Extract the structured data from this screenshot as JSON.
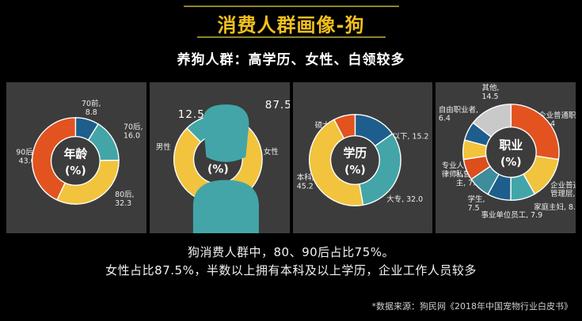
{
  "header": {
    "title": "消费人群画像-狗",
    "subtitle": "养狗人群：高学历、女性、白领较多"
  },
  "summary": {
    "line1": "狗消费人群中，80、90后占比75%。",
    "line2": "女性占比87.5%，半数以上拥有本科及以上学历，企业工作人员较多"
  },
  "footer": {
    "source": "*数据来源：狗民网《2018年中国宠物行业白皮书》"
  },
  "colors": {
    "background": "#000000",
    "panel": "#3C3C3C",
    "title": "#F1C01E",
    "title_line": "#8F852C",
    "text": "#FFFFFF",
    "orange": "#E2531F",
    "yellow": "#F2C33C",
    "teal": "#43A5A8",
    "blue": "#1D5E8C",
    "steel": "#3E8C9C",
    "red": "#DC4E1C",
    "gray": "#C9C9C9"
  },
  "gender_callouts": {
    "male_value": "12.5",
    "female_value": "87.5",
    "male_label": "男性",
    "female_label": "女性",
    "male_icon": "male-person-icon",
    "female_icon": "female-person-icon"
  },
  "chart_data": [
    {
      "type": "pie",
      "variant": "donut",
      "title": "年龄",
      "unit": "(%)",
      "legend_position": "radial-labels",
      "segments": [
        {
          "label": "70前",
          "value": 8.8,
          "color_key": "blue",
          "label_lines": [
            "70前,",
            "8.8"
          ]
        },
        {
          "label": "70后",
          "value": 16.0,
          "color_key": "teal",
          "label_lines": [
            "70后,",
            "16.0"
          ]
        },
        {
          "label": "80后",
          "value": 32.3,
          "color_key": "yellow",
          "label_lines": [
            "80后,",
            "32.3"
          ]
        },
        {
          "label": "90后",
          "value": 43.0,
          "color_key": "orange",
          "label_lines": [
            "90后,",
            "43.0"
          ]
        }
      ]
    },
    {
      "type": "pie",
      "variant": "donut",
      "title": "性别",
      "unit": "(%)",
      "legend_position": "icon-callouts",
      "segments": [
        {
          "label": "女性",
          "value": 87.5,
          "color_key": "yellow",
          "label_lines": []
        },
        {
          "label": "男性",
          "value": 12.5,
          "color_key": "teal",
          "label_lines": []
        }
      ]
    },
    {
      "type": "pie",
      "variant": "donut",
      "title": "学历",
      "unit": "(%)",
      "legend_position": "radial-labels",
      "segments": [
        {
          "label": "高中及以下",
          "value": 15.2,
          "color_key": "blue",
          "label_lines": [
            "高中及以下, 15.2"
          ]
        },
        {
          "label": "大专",
          "value": 32.0,
          "color_key": "teal",
          "label_lines": [
            "大专, 32.0"
          ]
        },
        {
          "label": "本科",
          "value": 45.2,
          "color_key": "yellow",
          "label_lines": [
            "本科,",
            "45.2"
          ]
        },
        {
          "label": "硕士及以上",
          "value": 7.6,
          "color_key": "orange",
          "label_lines": [
            "硕士及以上, 7.6"
          ]
        }
      ]
    },
    {
      "type": "pie",
      "variant": "donut",
      "title": "职业",
      "unit": "(%)",
      "legend_position": "radial-labels",
      "segments": [
        {
          "label": "企业普通职员",
          "value": 27.4,
          "color_key": "orange",
          "label_lines": [
            "企业普通职员,",
            "27.4"
          ]
        },
        {
          "label": "企业普通管理层",
          "value": 14.4,
          "color_key": "yellow",
          "label_lines": [
            "企业普通",
            "管理层,"
          ]
        },
        {
          "label": "家庭主妇",
          "value": 8.3,
          "color_key": "teal",
          "label_lines": [
            "家庭主妇, 8.3"
          ]
        },
        {
          "label": "事业单位员工",
          "value": 7.9,
          "color_key": "blue",
          "label_lines": [
            "事业单位员工, 7.9"
          ]
        },
        {
          "label": "学生",
          "value": 7.5,
          "color_key": "steel",
          "label_lines": [
            "学生,",
            "7.5"
          ]
        },
        {
          "label": "私营业主",
          "value": 7.1,
          "color_key": "red",
          "label_lines": [
            "私营业",
            "主, 7.1"
          ]
        },
        {
          "label": "专业人士（如律师）",
          "value": 6.5,
          "color_key": "yellow",
          "label_lines": [
            "专业人士（如",
            "律师），6.5"
          ]
        },
        {
          "label": "自由职业者",
          "value": 6.4,
          "color_key": "blue",
          "label_lines": [
            "自由职业者,",
            "6.4"
          ]
        },
        {
          "label": "其他",
          "value": 14.5,
          "color_key": "gray",
          "label_lines": [
            "其他,",
            "14.5"
          ]
        }
      ]
    }
  ]
}
